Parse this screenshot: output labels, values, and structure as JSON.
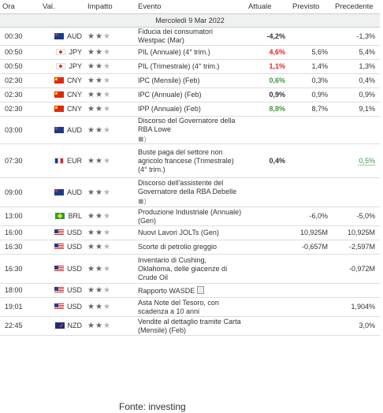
{
  "headers": {
    "time": "Ora",
    "currency": "Val.",
    "impact": "Impatto",
    "event": "Evento",
    "actual": "Attuale",
    "forecast": "Previsto",
    "previous": "Precedente"
  },
  "date_label": "Mercoledì 9 Mar 2022",
  "source": "Fonte: investing",
  "colors": {
    "negative": "#e0242c",
    "positive": "#3a9b3a"
  },
  "rows": [
    {
      "time": "00:30",
      "flag": "au",
      "currency": "AUD",
      "impact": 2,
      "event": [
        "Fiducia dei consumatori",
        "Westpac (Mar)"
      ],
      "actual": "-4,2%",
      "actual_color": "",
      "forecast": "",
      "previous": "-1,3%"
    },
    {
      "time": "00:50",
      "flag": "jp",
      "currency": "JPY",
      "impact": 2,
      "event": [
        "PIL (Annuale) (4° trim.)"
      ],
      "actual": "4,6%",
      "actual_color": "red",
      "forecast": "5,6%",
      "previous": "5,4%"
    },
    {
      "time": "00:50",
      "flag": "jp",
      "currency": "JPY",
      "impact": 2,
      "event": [
        "PIL (Trimestrale) (4° trim.)"
      ],
      "actual": "1,1%",
      "actual_color": "red",
      "forecast": "1,4%",
      "previous": "1,3%"
    },
    {
      "time": "02:30",
      "flag": "cn",
      "currency": "CNY",
      "impact": 2,
      "event": [
        "IPC (Mensile) (Feb)"
      ],
      "actual": "0,6%",
      "actual_color": "green",
      "forecast": "0,3%",
      "previous": "0,4%"
    },
    {
      "time": "02:30",
      "flag": "cn",
      "currency": "CNY",
      "impact": 2,
      "event": [
        "IPC (Annuale) (Feb)"
      ],
      "actual": "0,9%",
      "actual_color": "",
      "forecast": "0,9%",
      "previous": "0,9%"
    },
    {
      "time": "02:30",
      "flag": "cn",
      "currency": "CNY",
      "impact": 2,
      "event": [
        "IPP (Annuale) (Feb)"
      ],
      "actual": "8,8%",
      "actual_color": "green",
      "forecast": "8,7%",
      "previous": "9,1%"
    },
    {
      "time": "03:00",
      "flag": "au",
      "currency": "AUD",
      "impact": 2,
      "event": [
        "Discorso del Governatore della",
        "RBA Lowe"
      ],
      "speech": true,
      "actual": "",
      "actual_color": "",
      "forecast": "",
      "previous": ""
    },
    {
      "time": "07:30",
      "flag": "fr",
      "currency": "EUR",
      "impact": 2,
      "event": [
        "Buste paga del settore non",
        "agricolo francese (Trimestrale)",
        "(4° trim.)"
      ],
      "actual": "0,4%",
      "actual_color": "",
      "forecast": "",
      "previous": "0,5%",
      "previous_color": "green"
    },
    {
      "time": "09:00",
      "flag": "au",
      "currency": "AUD",
      "impact": 2,
      "event": [
        "Discorso dell'assistente del",
        "Governatore della RBA Debelle"
      ],
      "speech": true,
      "actual": "",
      "actual_color": "",
      "forecast": "",
      "previous": ""
    },
    {
      "time": "13:00",
      "flag": "br",
      "currency": "BRL",
      "impact": 2,
      "event": [
        "Produzione Industriale (Annuale)",
        "(Gen)"
      ],
      "actual": "",
      "actual_color": "",
      "forecast": "-6,0%",
      "previous": "-5,0%"
    },
    {
      "time": "16:00",
      "flag": "us",
      "currency": "USD",
      "impact": 2,
      "event": [
        "Nuovi Lavori JOLTs (Gen)"
      ],
      "actual": "",
      "actual_color": "",
      "forecast": "10,925M",
      "previous": "10,925M"
    },
    {
      "time": "16:30",
      "flag": "us",
      "currency": "USD",
      "impact": 2,
      "event": [
        "Scorte di petrolio greggio"
      ],
      "actual": "",
      "actual_color": "",
      "forecast": "-0,657M",
      "previous": "-2,597M"
    },
    {
      "time": "16:30",
      "flag": "us",
      "currency": "USD",
      "impact": 2,
      "event": [
        "Inventario di Cushing,",
        "Oklahoma, delle giacenze di",
        "Crude Oil"
      ],
      "actual": "",
      "actual_color": "",
      "forecast": "",
      "previous": "-0,972M"
    },
    {
      "time": "18:00",
      "flag": "us",
      "currency": "USD",
      "impact": 2,
      "event": [
        "Rapporto WASDE"
      ],
      "doc": true,
      "actual": "",
      "actual_color": "",
      "forecast": "",
      "previous": ""
    },
    {
      "time": "19:01",
      "flag": "us",
      "currency": "USD",
      "impact": 2,
      "event": [
        "Asta Note del Tesoro, con",
        "scadenza a 10 anni"
      ],
      "actual": "",
      "actual_color": "",
      "forecast": "",
      "previous": "1,904%"
    },
    {
      "time": "22:45",
      "flag": "nz",
      "currency": "NZD",
      "impact": 2,
      "event": [
        "Vendite al dettaglio tramite Carta",
        "(Mensile) (Feb)"
      ],
      "actual": "",
      "actual_color": "",
      "forecast": "",
      "previous": "3,0%"
    }
  ]
}
